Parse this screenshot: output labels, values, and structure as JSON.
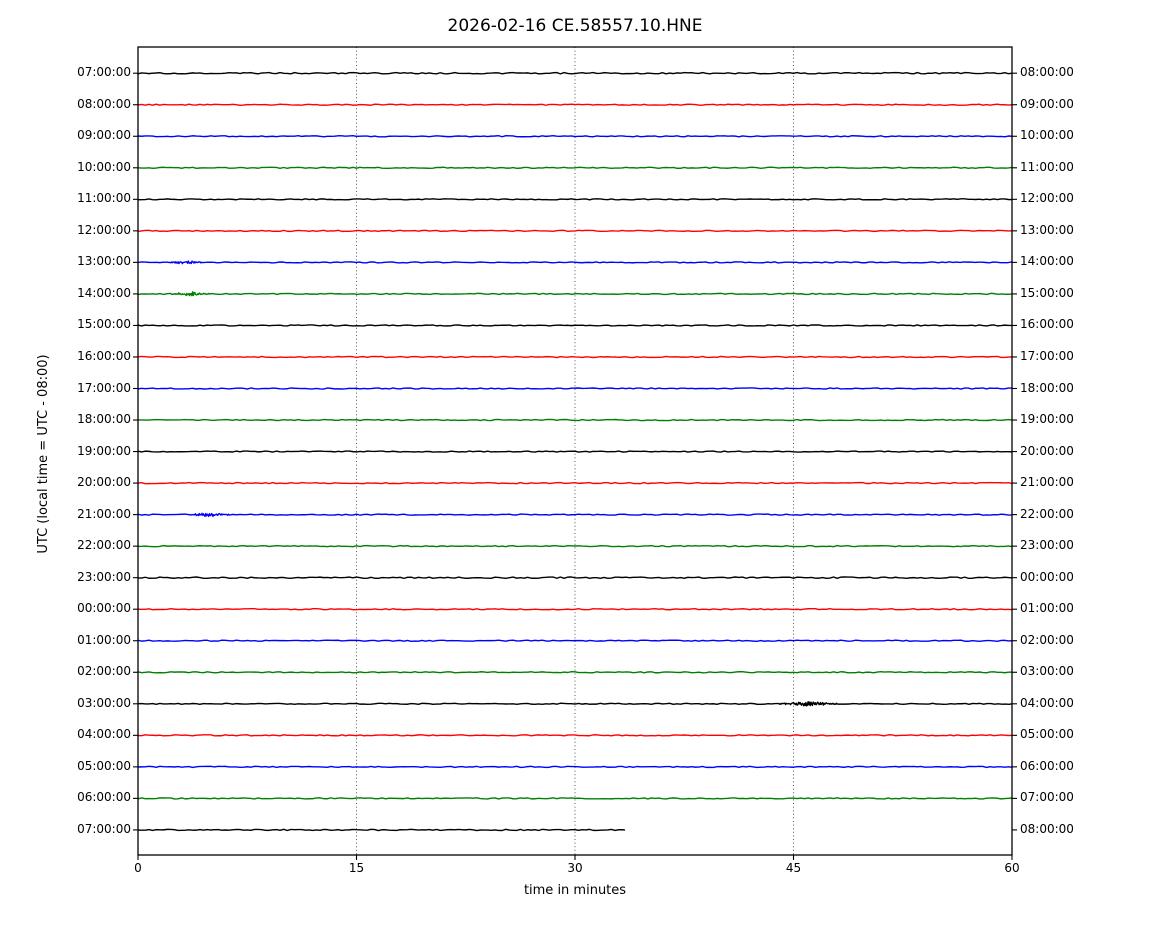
{
  "chart_data": {
    "type": "line",
    "subtype": "seismogram-helicorder-dayplot",
    "title": "2026-02-16 CE.58557.10.HNE",
    "xlabel": "time in minutes",
    "ylabel": "UTC (local time = UTC - 08:00)",
    "xlim": [
      0,
      60
    ],
    "x_ticks": [
      0,
      15,
      30,
      45,
      60
    ],
    "grid": {
      "vertical_dotted_at": [
        15,
        30,
        45
      ],
      "horizontal": false
    },
    "legend": "none",
    "trace_color_cycle": [
      "#000000",
      "#ff0000",
      "#0000ff",
      "#008000"
    ],
    "rows": [
      {
        "utc_start": "07:00:00",
        "utc_end": "08:00:00",
        "color": "#000000",
        "extent_min": 60,
        "noise": 1.2,
        "events": []
      },
      {
        "utc_start": "08:00:00",
        "utc_end": "09:00:00",
        "color": "#ff0000",
        "extent_min": 60,
        "noise": 1.0,
        "events": []
      },
      {
        "utc_start": "09:00:00",
        "utc_end": "10:00:00",
        "color": "#0000ff",
        "extent_min": 60,
        "noise": 1.0,
        "events": []
      },
      {
        "utc_start": "10:00:00",
        "utc_end": "11:00:00",
        "color": "#008000",
        "extent_min": 60,
        "noise": 1.0,
        "events": []
      },
      {
        "utc_start": "11:00:00",
        "utc_end": "12:00:00",
        "color": "#000000",
        "extent_min": 60,
        "noise": 1.0,
        "events": []
      },
      {
        "utc_start": "12:00:00",
        "utc_end": "13:00:00",
        "color": "#ff0000",
        "extent_min": 60,
        "noise": 1.0,
        "events": []
      },
      {
        "utc_start": "13:00:00",
        "utc_end": "14:00:00",
        "color": "#0000ff",
        "extent_min": 60,
        "noise": 1.0,
        "events": [
          {
            "start_min": 2.5,
            "end_min": 4.0,
            "amp": 1.1
          }
        ]
      },
      {
        "utc_start": "14:00:00",
        "utc_end": "15:00:00",
        "color": "#008000",
        "extent_min": 60,
        "noise": 1.0,
        "events": [
          {
            "start_min": 2.6,
            "end_min": 4.6,
            "amp": 1.8
          }
        ]
      },
      {
        "utc_start": "15:00:00",
        "utc_end": "16:00:00",
        "color": "#000000",
        "extent_min": 60,
        "noise": 1.0,
        "events": []
      },
      {
        "utc_start": "16:00:00",
        "utc_end": "17:00:00",
        "color": "#ff0000",
        "extent_min": 60,
        "noise": 1.0,
        "events": []
      },
      {
        "utc_start": "17:00:00",
        "utc_end": "18:00:00",
        "color": "#0000ff",
        "extent_min": 60,
        "noise": 1.0,
        "events": []
      },
      {
        "utc_start": "18:00:00",
        "utc_end": "19:00:00",
        "color": "#008000",
        "extent_min": 60,
        "noise": 1.0,
        "events": []
      },
      {
        "utc_start": "19:00:00",
        "utc_end": "20:00:00",
        "color": "#000000",
        "extent_min": 60,
        "noise": 1.0,
        "events": []
      },
      {
        "utc_start": "20:00:00",
        "utc_end": "21:00:00",
        "color": "#ff0000",
        "extent_min": 60,
        "noise": 1.0,
        "events": []
      },
      {
        "utc_start": "21:00:00",
        "utc_end": "22:00:00",
        "color": "#0000ff",
        "extent_min": 60,
        "noise": 1.0,
        "events": [
          {
            "start_min": 3.8,
            "end_min": 5.8,
            "amp": 1.5
          }
        ]
      },
      {
        "utc_start": "22:00:00",
        "utc_end": "23:00:00",
        "color": "#008000",
        "extent_min": 60,
        "noise": 1.0,
        "events": []
      },
      {
        "utc_start": "23:00:00",
        "utc_end": "00:00:00",
        "color": "#000000",
        "extent_min": 60,
        "noise": 1.25,
        "events": []
      },
      {
        "utc_start": "00:00:00",
        "utc_end": "01:00:00",
        "color": "#ff0000",
        "extent_min": 60,
        "noise": 1.0,
        "events": []
      },
      {
        "utc_start": "01:00:00",
        "utc_end": "02:00:00",
        "color": "#0000ff",
        "extent_min": 60,
        "noise": 1.0,
        "events": []
      },
      {
        "utc_start": "02:00:00",
        "utc_end": "03:00:00",
        "color": "#008000",
        "extent_min": 60,
        "noise": 1.0,
        "events": []
      },
      {
        "utc_start": "03:00:00",
        "utc_end": "04:00:00",
        "color": "#000000",
        "extent_min": 60,
        "noise": 1.0,
        "events": [
          {
            "start_min": 44.3,
            "end_min": 47.6,
            "amp": 1.5
          }
        ]
      },
      {
        "utc_start": "04:00:00",
        "utc_end": "05:00:00",
        "color": "#ff0000",
        "extent_min": 60,
        "noise": 1.0,
        "events": []
      },
      {
        "utc_start": "05:00:00",
        "utc_end": "06:00:00",
        "color": "#0000ff",
        "extent_min": 60,
        "noise": 1.0,
        "events": []
      },
      {
        "utc_start": "06:00:00",
        "utc_end": "07:00:00",
        "color": "#008000",
        "extent_min": 60,
        "noise": 1.0,
        "events": []
      },
      {
        "utc_start": "07:00:00",
        "utc_end": "08:00:00",
        "color": "#000000",
        "extent_min": 33.4,
        "noise": 1.1,
        "events": []
      }
    ]
  }
}
